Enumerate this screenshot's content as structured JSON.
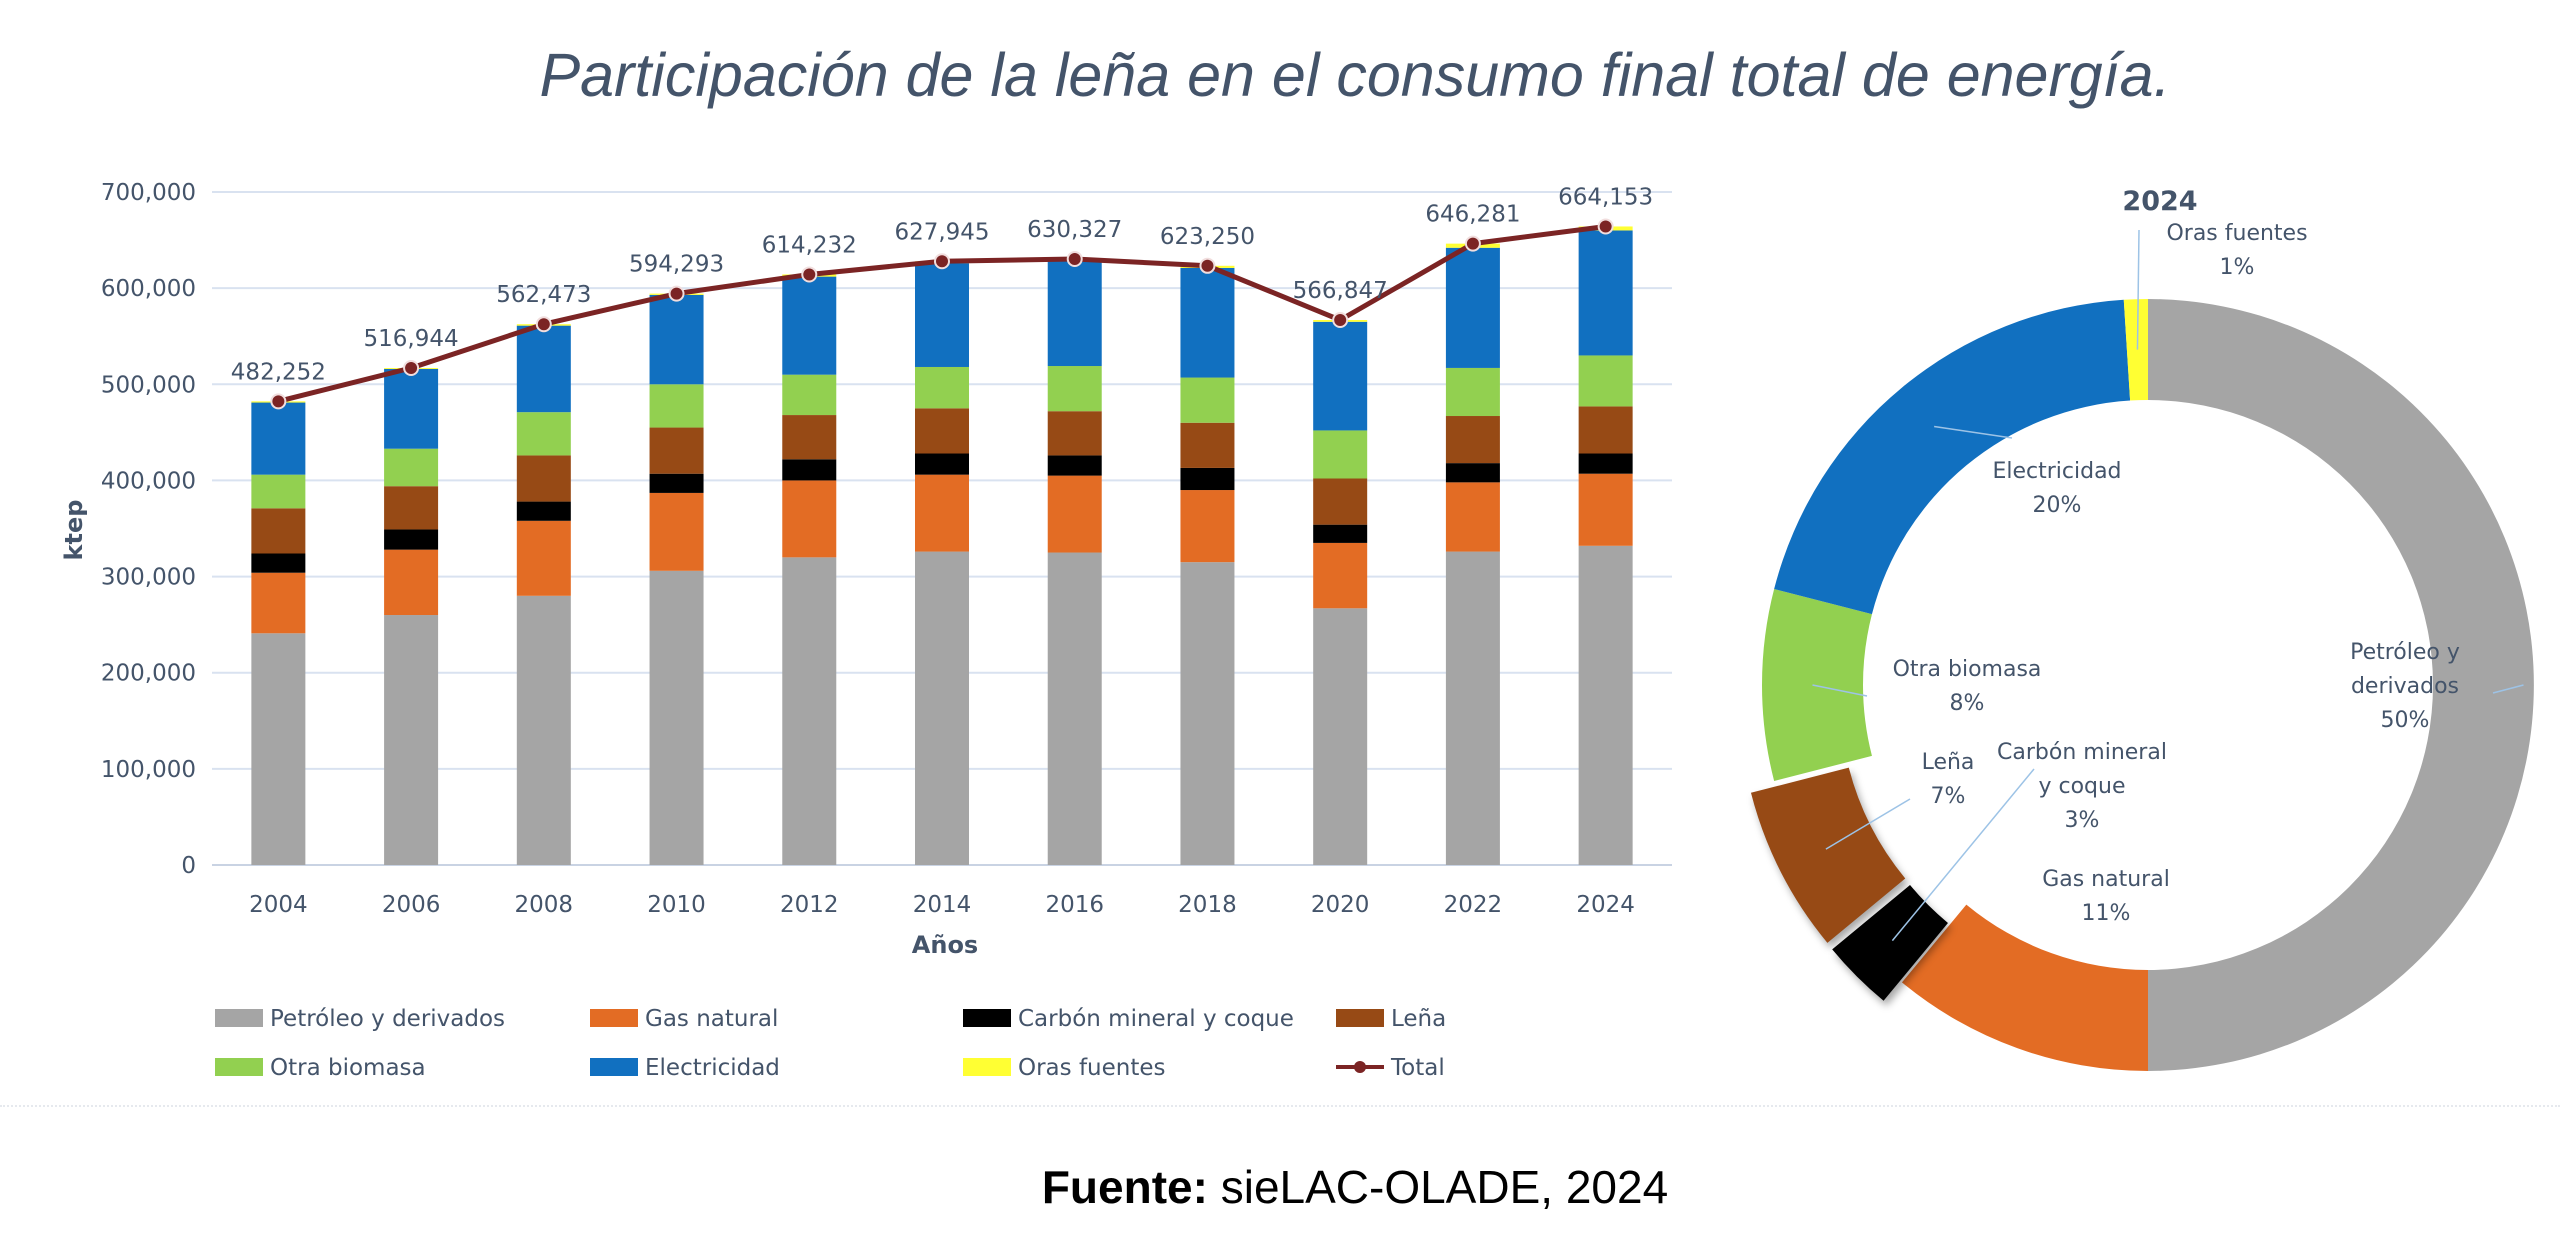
{
  "title": "Participación de la leña en el consumo final total de energía.",
  "source": {
    "bold": "Fuente:",
    "text": " sieLAC-OLADE, 2024"
  },
  "colors": {
    "Petróleo y derivados": "#a5a5a5",
    "Gas natural": "#e36c24",
    "Carbón mineral y coque": "#000000",
    "Leña": "#974a15",
    "Otra biomasa": "#92d050",
    "Electricidad": "#1170c0",
    "Oras fuentes": "#ffff33",
    "Total": "#7b2424",
    "grid": "#d9e2f0",
    "text": "#44546a"
  },
  "chart_data": [
    {
      "type": "bar",
      "stacked": true,
      "xlabel": "Años",
      "ylabel": "ktep",
      "ylim": [
        0,
        700000
      ],
      "yticks": [
        "0",
        "100,000",
        "200,000",
        "300,000",
        "400,000",
        "500,000",
        "600,000",
        "700,000"
      ],
      "ytick_values": [
        0,
        100000,
        200000,
        300000,
        400000,
        500000,
        600000,
        700000
      ],
      "categories": [
        "2004",
        "2006",
        "2008",
        "2010",
        "2012",
        "2014",
        "2016",
        "2018",
        "2020",
        "2022",
        "2024"
      ],
      "series": [
        {
          "name": "Petróleo y derivados",
          "values": [
            241000,
            260000,
            280000,
            306000,
            320000,
            326000,
            325000,
            315000,
            267000,
            326000,
            332000
          ]
        },
        {
          "name": "Gas natural",
          "values": [
            63000,
            68000,
            78000,
            81000,
            80000,
            80000,
            80000,
            75000,
            68000,
            72000,
            75000
          ]
        },
        {
          "name": "Carbón mineral y coque",
          "values": [
            20000,
            21000,
            20000,
            20000,
            22000,
            22000,
            21000,
            23000,
            19000,
            20000,
            21000
          ]
        },
        {
          "name": "Leña",
          "values": [
            47000,
            45000,
            48000,
            48000,
            46000,
            47000,
            46000,
            47000,
            48000,
            49000,
            49000
          ]
        },
        {
          "name": "Otra biomasa",
          "values": [
            35000,
            39000,
            45000,
            45000,
            42000,
            43000,
            47000,
            47000,
            50000,
            50000,
            53000
          ]
        },
        {
          "name": "Electricidad",
          "values": [
            75000,
            83000,
            90000,
            93000,
            102000,
            108000,
            110000,
            114000,
            113000,
            125000,
            130000
          ]
        },
        {
          "name": "Oras fuentes",
          "values": [
            1252,
            944,
            1473,
            1293,
            2232,
            1945,
            1327,
            2250,
            1847,
            4281,
            4153
          ]
        }
      ],
      "line": {
        "name": "Total",
        "values": [
          482252,
          516944,
          562473,
          594293,
          614232,
          627945,
          630327,
          623250,
          566847,
          646281,
          664153
        ],
        "labels": [
          "482,252",
          "516,944",
          "562,473",
          "594,293",
          "614,232",
          "627,945",
          "630,327",
          "623,250",
          "566,847",
          "646,281",
          "664,153"
        ]
      },
      "legend": [
        "Petróleo y derivados",
        "Gas natural",
        "Carbón mineral y coque",
        "Leña",
        "Otra biomasa",
        "Electricidad",
        "Oras fuentes",
        "Total"
      ],
      "legend_position": "bottom"
    },
    {
      "type": "pie",
      "style": "donut",
      "title": "2024",
      "slices": [
        {
          "name": "Petróleo y derivados",
          "label_lines": [
            "Petróleo y",
            "derivados",
            "50%"
          ],
          "value": 50
        },
        {
          "name": "Gas natural",
          "label_lines": [
            "Gas natural",
            "11%"
          ],
          "value": 11
        },
        {
          "name": "Carbón mineral y coque",
          "label_lines": [
            "Carbón mineral",
            "y coque",
            "3%"
          ],
          "value": 3,
          "exploded": true
        },
        {
          "name": "Leña",
          "label_lines": [
            "Leña",
            "7%"
          ],
          "value": 7,
          "exploded": true
        },
        {
          "name": "Otra biomasa",
          "label_lines": [
            "Otra biomasa",
            "8%"
          ],
          "value": 8
        },
        {
          "name": "Electricidad",
          "label_lines": [
            "Electricidad",
            "20%"
          ],
          "value": 20
        },
        {
          "name": "Oras fuentes",
          "label_lines": [
            "Oras fuentes",
            "1%"
          ],
          "value": 1
        }
      ]
    }
  ]
}
